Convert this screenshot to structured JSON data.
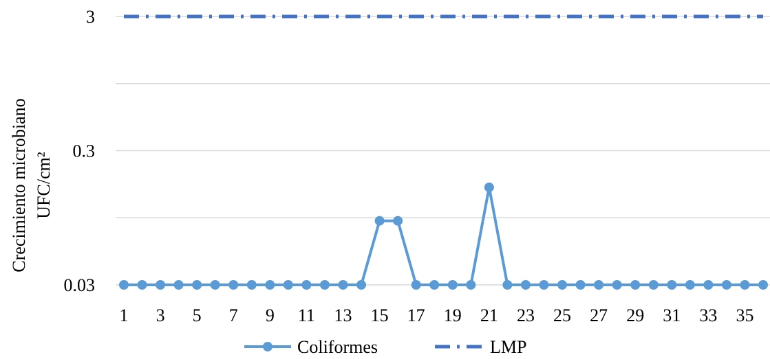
{
  "chart_data": {
    "type": "line",
    "scale": "log",
    "title": "",
    "xlabel": "",
    "ylabel_lines": [
      "Crecimiento microbiano",
      "UFC/cm²"
    ],
    "yticks": [
      0.03,
      0.3,
      3
    ],
    "ytick_labels": [
      "0.03",
      "0.3",
      "3"
    ],
    "ylim": [
      0.03,
      3
    ],
    "grid": true,
    "legend_position": "bottom",
    "x": [
      1,
      2,
      3,
      4,
      5,
      6,
      7,
      8,
      9,
      10,
      11,
      12,
      13,
      14,
      15,
      16,
      17,
      18,
      19,
      20,
      21,
      22,
      23,
      24,
      25,
      26,
      27,
      28,
      29,
      30,
      31,
      32,
      33,
      34,
      35,
      36
    ],
    "xtick_labels": [
      "1",
      "3",
      "5",
      "7",
      "9",
      "11",
      "13",
      "15",
      "17",
      "19",
      "21",
      "23",
      "25",
      "27",
      "29",
      "31",
      "33",
      "35"
    ],
    "series": [
      {
        "name": "Coliformes",
        "color": "#5b9bd5",
        "style": "solid-marker",
        "values": [
          0.03,
          0.03,
          0.03,
          0.03,
          0.03,
          0.03,
          0.03,
          0.03,
          0.03,
          0.03,
          0.03,
          0.03,
          0.03,
          0.03,
          0.09,
          0.09,
          0.03,
          0.03,
          0.03,
          0.03,
          0.16,
          0.03,
          0.03,
          0.03,
          0.03,
          0.03,
          0.03,
          0.03,
          0.03,
          0.03,
          0.03,
          0.03,
          0.03,
          0.03,
          0.03,
          0.03
        ]
      },
      {
        "name": "LMP",
        "color": "#4472c4",
        "style": "dash-dot",
        "values": [
          3,
          3,
          3,
          3,
          3,
          3,
          3,
          3,
          3,
          3,
          3,
          3,
          3,
          3,
          3,
          3,
          3,
          3,
          3,
          3,
          3,
          3,
          3,
          3,
          3,
          3,
          3,
          3,
          3,
          3,
          3,
          3,
          3,
          3,
          3,
          3
        ]
      }
    ]
  }
}
